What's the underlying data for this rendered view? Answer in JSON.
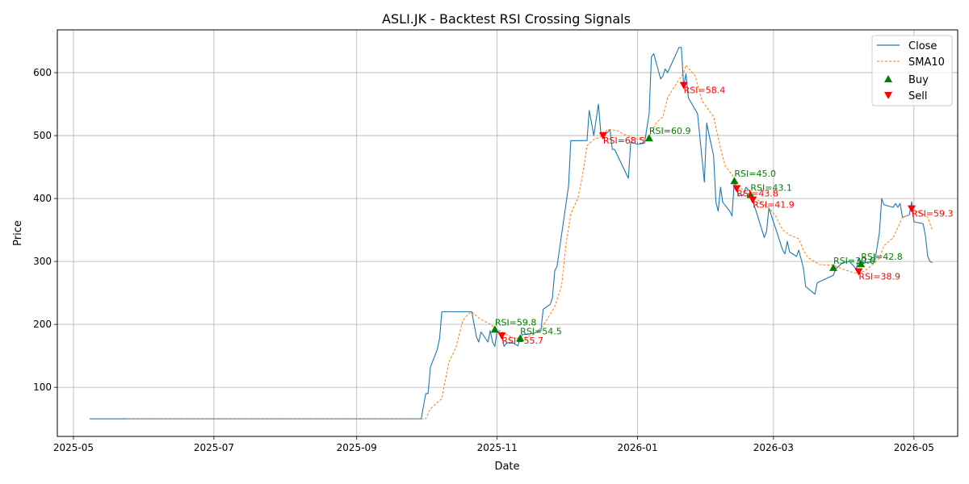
{
  "chart_data": {
    "type": "line",
    "title": "ASLI.JK - Backtest RSI Crossing Signals",
    "xlabel": "Date",
    "ylabel": "Price",
    "x_range": [
      "2025-04-24",
      "2026-05-20"
    ],
    "ylim": [
      22,
      668
    ],
    "grid": true,
    "legend_position": "top-right",
    "x_ticks": [
      {
        "date": "2025-05-01",
        "label": "2025-05"
      },
      {
        "date": "2025-07-01",
        "label": "2025-07"
      },
      {
        "date": "2025-09-01",
        "label": "2025-09"
      },
      {
        "date": "2025-11-01",
        "label": "2025-11"
      },
      {
        "date": "2026-01-01",
        "label": "2026-01"
      },
      {
        "date": "2026-03-01",
        "label": "2026-03"
      },
      {
        "date": "2026-05-01",
        "label": "2026-05"
      }
    ],
    "y_ticks": [
      100,
      200,
      300,
      400,
      500,
      600
    ],
    "colors": {
      "close": "#1f77b4",
      "sma": "#ff7f0e",
      "buy": "#008000",
      "sell": "#ff0000",
      "grid": "#b0b0b0"
    },
    "series": [
      {
        "name": "Close",
        "points": [
          [
            "2025-05-08",
            50
          ],
          [
            "2025-06-15",
            50
          ],
          [
            "2025-08-01",
            50
          ],
          [
            "2025-09-29",
            50
          ],
          [
            "2025-10-01",
            90
          ],
          [
            "2025-10-02",
            90
          ],
          [
            "2025-10-03",
            132
          ],
          [
            "2025-10-06",
            160
          ],
          [
            "2025-10-07",
            178
          ],
          [
            "2025-10-08",
            220
          ],
          [
            "2025-10-15",
            220
          ],
          [
            "2025-10-21",
            220
          ],
          [
            "2025-10-23",
            180
          ],
          [
            "2025-10-24",
            172
          ],
          [
            "2025-10-25",
            188
          ],
          [
            "2025-10-28",
            172
          ],
          [
            "2025-10-29",
            190
          ],
          [
            "2025-10-30",
            172
          ],
          [
            "2025-10-31",
            165
          ],
          [
            "2025-11-01",
            190
          ],
          [
            "2025-11-03",
            184
          ],
          [
            "2025-11-04",
            165
          ],
          [
            "2025-11-05",
            170
          ],
          [
            "2025-11-07",
            172
          ],
          [
            "2025-11-10",
            166
          ],
          [
            "2025-11-11",
            178
          ],
          [
            "2025-11-12",
            184
          ],
          [
            "2025-11-14",
            184
          ],
          [
            "2025-11-17",
            186
          ],
          [
            "2025-11-20",
            190
          ],
          [
            "2025-11-21",
            224
          ],
          [
            "2025-11-24",
            232
          ],
          [
            "2025-11-25",
            242
          ],
          [
            "2025-11-26",
            285
          ],
          [
            "2025-11-27",
            292
          ],
          [
            "2025-11-28",
            318
          ],
          [
            "2025-12-02",
            420
          ],
          [
            "2025-12-03",
            492
          ],
          [
            "2025-12-10",
            492
          ],
          [
            "2025-12-11",
            540
          ],
          [
            "2025-12-13",
            500
          ],
          [
            "2025-12-15",
            550
          ],
          [
            "2025-12-16",
            505
          ],
          [
            "2025-12-19",
            505
          ],
          [
            "2025-12-20",
            510
          ],
          [
            "2025-12-21",
            478
          ],
          [
            "2025-12-22",
            478
          ],
          [
            "2025-12-28",
            432
          ],
          [
            "2025-12-29",
            490
          ],
          [
            "2026-01-01",
            486
          ],
          [
            "2026-01-04",
            488
          ],
          [
            "2026-01-06",
            535
          ],
          [
            "2026-01-07",
            625
          ],
          [
            "2026-01-08",
            630
          ],
          [
            "2026-01-11",
            590
          ],
          [
            "2026-01-12",
            595
          ],
          [
            "2026-01-13",
            606
          ],
          [
            "2026-01-14",
            600
          ],
          [
            "2026-01-19",
            640
          ],
          [
            "2026-01-20",
            640
          ],
          [
            "2026-01-21",
            578
          ],
          [
            "2026-01-22",
            598
          ],
          [
            "2026-01-23",
            560
          ],
          [
            "2026-01-27",
            535
          ],
          [
            "2026-01-30",
            426
          ],
          [
            "2026-01-31",
            520
          ],
          [
            "2026-02-01",
            502
          ],
          [
            "2026-02-03",
            468
          ],
          [
            "2026-02-04",
            394
          ],
          [
            "2026-02-05",
            380
          ],
          [
            "2026-02-06",
            418
          ],
          [
            "2026-02-07",
            394
          ],
          [
            "2026-02-10",
            380
          ],
          [
            "2026-02-11",
            372
          ],
          [
            "2026-02-12",
            428
          ],
          [
            "2026-02-13",
            418
          ],
          [
            "2026-02-14",
            404
          ],
          [
            "2026-02-16",
            406
          ],
          [
            "2026-02-17",
            418
          ],
          [
            "2026-02-19",
            410
          ],
          [
            "2026-02-21",
            385
          ],
          [
            "2026-02-25",
            338
          ],
          [
            "2026-02-26",
            348
          ],
          [
            "2026-02-27",
            385
          ],
          [
            "2026-03-05",
            318
          ],
          [
            "2026-03-06",
            312
          ],
          [
            "2026-03-07",
            332
          ],
          [
            "2026-03-08",
            315
          ],
          [
            "2026-03-11",
            308
          ],
          [
            "2026-03-12",
            318
          ],
          [
            "2026-03-14",
            290
          ],
          [
            "2026-03-15",
            260
          ],
          [
            "2026-03-19",
            248
          ],
          [
            "2026-03-20",
            266
          ],
          [
            "2026-03-27",
            278
          ],
          [
            "2026-03-28",
            288
          ],
          [
            "2026-03-31",
            298
          ],
          [
            "2026-04-03",
            300
          ],
          [
            "2026-04-06",
            288
          ],
          [
            "2026-04-07",
            305
          ],
          [
            "2026-04-08",
            300
          ],
          [
            "2026-04-09",
            298
          ],
          [
            "2026-04-10",
            298
          ],
          [
            "2026-04-14",
            300
          ],
          [
            "2026-04-16",
            345
          ],
          [
            "2026-04-17",
            400
          ],
          [
            "2026-04-18",
            390
          ],
          [
            "2026-04-22",
            386
          ],
          [
            "2026-04-23",
            392
          ],
          [
            "2026-04-24",
            386
          ],
          [
            "2026-04-25",
            392
          ],
          [
            "2026-04-26",
            370
          ],
          [
            "2026-04-29",
            374
          ],
          [
            "2026-04-30",
            395
          ],
          [
            "2026-05-01",
            363
          ],
          [
            "2026-05-05",
            360
          ],
          [
            "2026-05-06",
            340
          ],
          [
            "2026-05-07",
            308
          ],
          [
            "2026-05-08",
            300
          ],
          [
            "2026-05-09",
            298
          ]
        ]
      },
      {
        "name": "SMA10",
        "points": [
          [
            "2025-05-24",
            50
          ],
          [
            "2025-07-01",
            50
          ],
          [
            "2025-09-01",
            50
          ],
          [
            "2025-10-01",
            50
          ],
          [
            "2025-10-03",
            66
          ],
          [
            "2025-10-06",
            76
          ],
          [
            "2025-10-08",
            82
          ],
          [
            "2025-10-11",
            140
          ],
          [
            "2025-10-14",
            162
          ],
          [
            "2025-10-17",
            205
          ],
          [
            "2025-10-19",
            215
          ],
          [
            "2025-10-21",
            220
          ],
          [
            "2025-10-24",
            210
          ],
          [
            "2025-10-29",
            200
          ],
          [
            "2025-11-01",
            192
          ],
          [
            "2025-11-05",
            184
          ],
          [
            "2025-11-08",
            178
          ],
          [
            "2025-11-12",
            178
          ],
          [
            "2025-11-17",
            184
          ],
          [
            "2025-11-21",
            198
          ],
          [
            "2025-11-26",
            228
          ],
          [
            "2025-11-29",
            262
          ],
          [
            "2025-12-01",
            330
          ],
          [
            "2025-12-03",
            376
          ],
          [
            "2025-12-06",
            400
          ],
          [
            "2025-12-08",
            435
          ],
          [
            "2025-12-10",
            484
          ],
          [
            "2025-12-13",
            494
          ],
          [
            "2025-12-16",
            498
          ],
          [
            "2025-12-19",
            510
          ],
          [
            "2025-12-23",
            508
          ],
          [
            "2025-12-26",
            502
          ],
          [
            "2026-01-01",
            494
          ],
          [
            "2026-01-06",
            498
          ],
          [
            "2026-01-09",
            520
          ],
          [
            "2026-01-12",
            530
          ],
          [
            "2026-01-14",
            560
          ],
          [
            "2026-01-17",
            578
          ],
          [
            "2026-01-21",
            600
          ],
          [
            "2026-01-22",
            612
          ],
          [
            "2026-01-26",
            595
          ],
          [
            "2026-01-29",
            555
          ],
          [
            "2026-02-03",
            530
          ],
          [
            "2026-02-06",
            480
          ],
          [
            "2026-02-08",
            452
          ],
          [
            "2026-02-13",
            428
          ],
          [
            "2026-02-15",
            416
          ],
          [
            "2026-02-18",
            408
          ],
          [
            "2026-02-22",
            398
          ],
          [
            "2026-02-27",
            385
          ],
          [
            "2026-03-02",
            372
          ],
          [
            "2026-03-05",
            350
          ],
          [
            "2026-03-08",
            342
          ],
          [
            "2026-03-12",
            336
          ],
          [
            "2026-03-14",
            318
          ],
          [
            "2026-03-16",
            306
          ],
          [
            "2026-03-21",
            295
          ],
          [
            "2026-03-27",
            294
          ],
          [
            "2026-03-31",
            288
          ],
          [
            "2026-04-05",
            282
          ],
          [
            "2026-04-08",
            282
          ],
          [
            "2026-04-10",
            286
          ],
          [
            "2026-04-14",
            298
          ],
          [
            "2026-04-16",
            305
          ],
          [
            "2026-04-18",
            325
          ],
          [
            "2026-04-22",
            338
          ],
          [
            "2026-04-26",
            370
          ],
          [
            "2026-05-03",
            380
          ],
          [
            "2026-05-07",
            370
          ],
          [
            "2026-05-09",
            350
          ]
        ]
      }
    ],
    "buy_signals": [
      {
        "date": "2025-10-31",
        "price": 192,
        "label": "RSI=59.8"
      },
      {
        "date": "2025-11-11",
        "price": 178,
        "label": "RSI=54.5"
      },
      {
        "date": "2026-01-06",
        "price": 496,
        "label": "RSI=60.9"
      },
      {
        "date": "2026-02-12",
        "price": 428,
        "label": "RSI=45.0"
      },
      {
        "date": "2026-02-19",
        "price": 406,
        "label": "RSI=43.1"
      },
      {
        "date": "2026-03-27",
        "price": 290,
        "label": "RSI=39.6"
      },
      {
        "date": "2026-04-08",
        "price": 296,
        "label": "RSI=42.8"
      }
    ],
    "sell_signals": [
      {
        "date": "2025-11-03",
        "price": 182,
        "label": "RSI=55.7"
      },
      {
        "date": "2025-12-17",
        "price": 500,
        "label": "RSI=68.5"
      },
      {
        "date": "2026-01-21",
        "price": 580,
        "label": "RSI=58.4"
      },
      {
        "date": "2026-02-13",
        "price": 416,
        "label": "RSI=43.8"
      },
      {
        "date": "2026-02-20",
        "price": 398,
        "label": "RSI=41.9"
      },
      {
        "date": "2026-04-07",
        "price": 284,
        "label": "RSI=38.9"
      },
      {
        "date": "2026-04-30",
        "price": 384,
        "label": "RSI=59.3"
      }
    ],
    "legend": [
      "Close",
      "SMA10",
      "Buy",
      "Sell"
    ]
  }
}
